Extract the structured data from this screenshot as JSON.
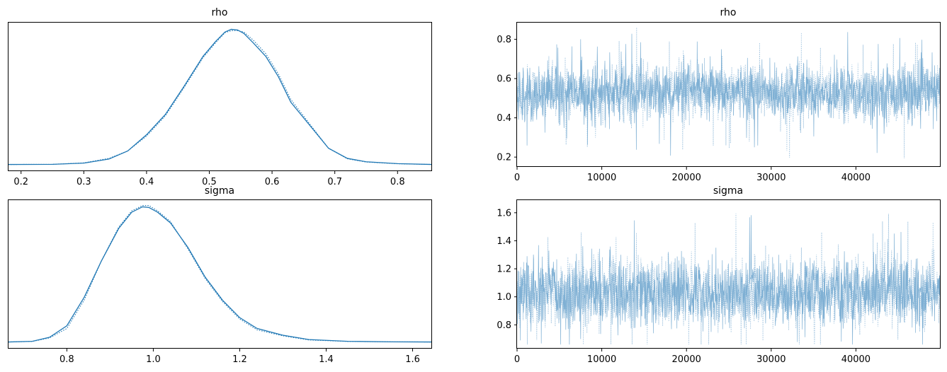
{
  "colors": {
    "line": "#1f77b4",
    "trace_fill": "#7fb0d4",
    "trace_light": "#a9c9e2",
    "axis": "#000000"
  },
  "chart_data": [
    {
      "id": "rho-density",
      "type": "line",
      "title": "rho",
      "xlim": [
        0.18,
        0.855
      ],
      "xticks": [
        0.2,
        0.3,
        0.4,
        0.5,
        0.6,
        0.7,
        0.8
      ],
      "xtick_labels": [
        "0.2",
        "0.3",
        "0.4",
        "0.5",
        "0.6",
        "0.7",
        "0.8"
      ],
      "yticks": [],
      "grid": false,
      "series": [
        {
          "style": "solid",
          "x": [
            0.18,
            0.25,
            0.3,
            0.34,
            0.37,
            0.4,
            0.43,
            0.46,
            0.49,
            0.51,
            0.525,
            0.535,
            0.545,
            0.555,
            0.57,
            0.59,
            0.61,
            0.63,
            0.66,
            0.69,
            0.72,
            0.75,
            0.8,
            0.855
          ],
          "y": [
            0.0,
            0.001,
            0.01,
            0.04,
            0.1,
            0.22,
            0.37,
            0.58,
            0.8,
            0.91,
            0.98,
            1.0,
            0.995,
            0.97,
            0.9,
            0.8,
            0.65,
            0.46,
            0.29,
            0.12,
            0.045,
            0.02,
            0.006,
            0.0
          ]
        },
        {
          "style": "dotted",
          "x": [
            0.18,
            0.25,
            0.3,
            0.34,
            0.37,
            0.4,
            0.43,
            0.46,
            0.49,
            0.51,
            0.525,
            0.535,
            0.545,
            0.555,
            0.57,
            0.59,
            0.61,
            0.63,
            0.66,
            0.69,
            0.72,
            0.75,
            0.8,
            0.855
          ],
          "y": [
            0.0,
            0.001,
            0.012,
            0.045,
            0.1,
            0.21,
            0.36,
            0.57,
            0.79,
            0.9,
            0.975,
            0.99,
            0.99,
            0.98,
            0.92,
            0.82,
            0.67,
            0.48,
            0.3,
            0.12,
            0.042,
            0.018,
            0.005,
            0.0
          ]
        }
      ]
    },
    {
      "id": "rho-trace",
      "type": "line",
      "title": "rho",
      "xlim": [
        0,
        49999
      ],
      "ylim": [
        0.15,
        0.885
      ],
      "xticks": [
        0,
        10000,
        20000,
        30000,
        40000
      ],
      "xtick_labels": [
        "0",
        "10000",
        "20000",
        "30000",
        "40000"
      ],
      "yticks": [
        0.2,
        0.4,
        0.6,
        0.8
      ],
      "ytick_labels": [
        "0.2",
        "0.4",
        "0.6",
        "0.8"
      ],
      "grid": false,
      "band": {
        "center": 0.53,
        "sd": 0.07,
        "min": 0.17,
        "max": 0.86
      }
    },
    {
      "id": "sigma-density",
      "type": "line",
      "title": "sigma",
      "xlim": [
        0.665,
        1.645
      ],
      "xticks": [
        0.8,
        1.0,
        1.2,
        1.4,
        1.6
      ],
      "xtick_labels": [
        "0.8",
        "1.0",
        "1.2",
        "1.4",
        "1.6"
      ],
      "yticks": [],
      "grid": false,
      "series": [
        {
          "style": "solid",
          "x": [
            0.665,
            0.72,
            0.76,
            0.8,
            0.84,
            0.88,
            0.92,
            0.95,
            0.975,
            0.99,
            1.01,
            1.04,
            1.08,
            1.12,
            1.16,
            1.2,
            1.24,
            1.3,
            1.36,
            1.45,
            1.55,
            1.645
          ],
          "y": [
            0.0,
            0.005,
            0.035,
            0.12,
            0.33,
            0.6,
            0.84,
            0.96,
            1.0,
            0.995,
            0.96,
            0.88,
            0.7,
            0.48,
            0.31,
            0.18,
            0.1,
            0.05,
            0.018,
            0.005,
            0.001,
            0.0
          ]
        },
        {
          "style": "dotted",
          "x": [
            0.665,
            0.72,
            0.76,
            0.8,
            0.84,
            0.88,
            0.92,
            0.95,
            0.975,
            0.99,
            1.01,
            1.04,
            1.08,
            1.12,
            1.16,
            1.2,
            1.24,
            1.3,
            1.36,
            1.45,
            1.55,
            1.645
          ],
          "y": [
            0.0,
            0.004,
            0.03,
            0.1,
            0.31,
            0.6,
            0.85,
            0.97,
            1.01,
            1.01,
            0.97,
            0.89,
            0.69,
            0.47,
            0.3,
            0.17,
            0.09,
            0.045,
            0.015,
            0.004,
            0.001,
            0.0
          ]
        }
      ]
    },
    {
      "id": "sigma-trace",
      "type": "line",
      "title": "sigma",
      "xlim": [
        0,
        49999
      ],
      "ylim": [
        0.63,
        1.69
      ],
      "xticks": [
        0,
        10000,
        20000,
        30000,
        40000
      ],
      "xtick_labels": [
        "0",
        "10000",
        "20000",
        "30000",
        "40000"
      ],
      "yticks": [
        0.8,
        1.0,
        1.2,
        1.4,
        1.6
      ],
      "ytick_labels": [
        "0.8",
        "1.0",
        "1.2",
        "1.4",
        "1.6"
      ],
      "grid": false,
      "band": {
        "center": 1.03,
        "sd": 0.12,
        "min": 0.66,
        "max": 1.65
      }
    }
  ]
}
